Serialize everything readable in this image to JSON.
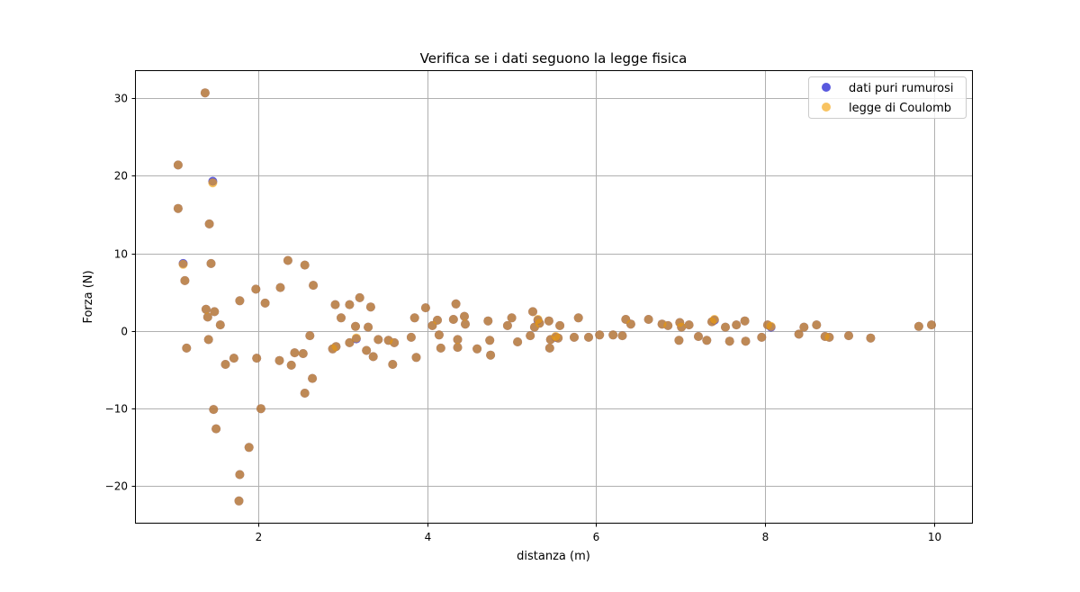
{
  "chart_data": {
    "type": "scatter",
    "title": "Verifica se i dati seguono la legge fisica",
    "xlabel": "distanza (m)",
    "ylabel": "Forza (N)",
    "xlim": [
      0.55,
      10.45
    ],
    "ylim": [
      -24.7,
      33.5
    ],
    "xticks": [
      2,
      4,
      6,
      8,
      10
    ],
    "xtick_labels": [
      "2",
      "4",
      "6",
      "8",
      "10"
    ],
    "yticks": [
      -20,
      -10,
      0,
      10,
      20,
      30
    ],
    "ytick_labels": [
      "−20",
      "−10",
      "0",
      "10",
      "20",
      "30"
    ],
    "grid": true,
    "legend_position": "top-right",
    "series": [
      {
        "name": "dati puri rumurosi",
        "color": "#0000cc",
        "alpha": 0.65,
        "points": [
          [
            1.05,
            21.4
          ],
          [
            1.05,
            15.8
          ],
          [
            1.11,
            8.7
          ],
          [
            1.13,
            6.5
          ],
          [
            1.15,
            -2.2
          ],
          [
            1.37,
            30.7
          ],
          [
            1.38,
            2.8
          ],
          [
            1.4,
            1.8
          ],
          [
            1.41,
            -1.1
          ],
          [
            1.42,
            13.8
          ],
          [
            1.44,
            8.7
          ],
          [
            1.46,
            19.3
          ],
          [
            1.47,
            -10.1
          ],
          [
            1.48,
            2.5
          ],
          [
            1.5,
            -12.6
          ],
          [
            1.55,
            0.8
          ],
          [
            1.61,
            -4.3
          ],
          [
            1.71,
            -3.5
          ],
          [
            1.77,
            -21.9
          ],
          [
            1.78,
            -18.5
          ],
          [
            1.78,
            3.9
          ],
          [
            1.89,
            -15.0
          ],
          [
            1.97,
            5.4
          ],
          [
            1.98,
            -3.5
          ],
          [
            2.03,
            -10.0
          ],
          [
            2.08,
            3.6
          ],
          [
            2.25,
            -3.8
          ],
          [
            2.26,
            5.6
          ],
          [
            2.35,
            9.1
          ],
          [
            2.39,
            -4.4
          ],
          [
            2.43,
            -2.8
          ],
          [
            2.53,
            -2.9
          ],
          [
            2.55,
            8.5
          ],
          [
            2.55,
            -8.0
          ],
          [
            2.61,
            -0.6
          ],
          [
            2.64,
            -6.1
          ],
          [
            2.65,
            5.9
          ],
          [
            2.88,
            -2.3
          ],
          [
            2.91,
            3.4
          ],
          [
            2.92,
            -2.0
          ],
          [
            2.98,
            1.7
          ],
          [
            3.08,
            3.4
          ],
          [
            3.08,
            -1.5
          ],
          [
            3.15,
            0.6
          ],
          [
            3.16,
            -1.0
          ],
          [
            3.2,
            4.3
          ],
          [
            3.28,
            -2.5
          ],
          [
            3.3,
            0.5
          ],
          [
            3.33,
            3.1
          ],
          [
            3.36,
            -3.3
          ],
          [
            3.42,
            -1.1
          ],
          [
            3.54,
            -1.2
          ],
          [
            3.59,
            -4.3
          ],
          [
            3.61,
            -1.5
          ],
          [
            3.81,
            -0.8
          ],
          [
            3.85,
            1.7
          ],
          [
            3.87,
            -3.4
          ],
          [
            3.98,
            3.0
          ],
          [
            4.06,
            0.7
          ],
          [
            4.12,
            1.4
          ],
          [
            4.14,
            -0.5
          ],
          [
            4.16,
            -2.2
          ],
          [
            4.31,
            1.5
          ],
          [
            4.34,
            3.5
          ],
          [
            4.36,
            -1.1
          ],
          [
            4.36,
            -2.1
          ],
          [
            4.44,
            1.9
          ],
          [
            4.45,
            0.9
          ],
          [
            4.59,
            -2.3
          ],
          [
            4.72,
            1.3
          ],
          [
            4.74,
            -1.2
          ],
          [
            4.75,
            -3.1
          ],
          [
            4.95,
            0.7
          ],
          [
            5.0,
            1.7
          ],
          [
            5.07,
            -1.4
          ],
          [
            5.22,
            -0.6
          ],
          [
            5.25,
            2.5
          ],
          [
            5.27,
            0.5
          ],
          [
            5.31,
            1.4
          ],
          [
            5.33,
            1.0
          ],
          [
            5.44,
            1.3
          ],
          [
            5.45,
            -2.2
          ],
          [
            5.46,
            -1.1
          ],
          [
            5.52,
            -0.8
          ],
          [
            5.55,
            -0.9
          ],
          [
            5.57,
            0.7
          ],
          [
            5.74,
            -0.8
          ],
          [
            5.79,
            1.7
          ],
          [
            5.91,
            -0.8
          ],
          [
            6.04,
            -0.5
          ],
          [
            6.2,
            -0.5
          ],
          [
            6.31,
            -0.6
          ],
          [
            6.35,
            1.5
          ],
          [
            6.41,
            0.9
          ],
          [
            6.62,
            1.5
          ],
          [
            6.78,
            0.9
          ],
          [
            6.85,
            0.7
          ],
          [
            6.98,
            -1.2
          ],
          [
            6.99,
            1.1
          ],
          [
            7.01,
            0.5
          ],
          [
            7.1,
            0.8
          ],
          [
            7.21,
            -0.7
          ],
          [
            7.31,
            -1.2
          ],
          [
            7.37,
            1.2
          ],
          [
            7.4,
            1.4
          ],
          [
            7.53,
            0.5
          ],
          [
            7.58,
            -1.3
          ],
          [
            7.66,
            0.8
          ],
          [
            7.76,
            1.3
          ],
          [
            7.77,
            -1.3
          ],
          [
            7.96,
            -0.8
          ],
          [
            8.03,
            0.8
          ],
          [
            8.07,
            0.5
          ],
          [
            8.4,
            -0.4
          ],
          [
            8.46,
            0.5
          ],
          [
            8.61,
            0.8
          ],
          [
            8.71,
            -0.7
          ],
          [
            8.76,
            -0.8
          ],
          [
            8.99,
            -0.6
          ],
          [
            9.25,
            -0.9
          ],
          [
            9.82,
            0.6
          ],
          [
            9.97,
            0.8
          ]
        ]
      },
      {
        "name": "legge di Coulomb",
        "color": "#f5a30c",
        "alpha": 0.65,
        "points": [
          [
            1.05,
            21.4
          ],
          [
            1.05,
            15.8
          ],
          [
            1.11,
            8.6
          ],
          [
            1.13,
            6.5
          ],
          [
            1.15,
            -2.2
          ],
          [
            1.37,
            30.7
          ],
          [
            1.38,
            2.8
          ],
          [
            1.4,
            1.8
          ],
          [
            1.41,
            -1.1
          ],
          [
            1.42,
            13.8
          ],
          [
            1.44,
            8.7
          ],
          [
            1.46,
            19.1
          ],
          [
            1.47,
            -10.1
          ],
          [
            1.48,
            2.5
          ],
          [
            1.5,
            -12.6
          ],
          [
            1.55,
            0.8
          ],
          [
            1.61,
            -4.3
          ],
          [
            1.71,
            -3.5
          ],
          [
            1.77,
            -21.9
          ],
          [
            1.78,
            -18.5
          ],
          [
            1.78,
            3.9
          ],
          [
            1.89,
            -15.0
          ],
          [
            1.97,
            5.4
          ],
          [
            1.98,
            -3.5
          ],
          [
            2.03,
            -10.0
          ],
          [
            2.08,
            3.6
          ],
          [
            2.25,
            -3.8
          ],
          [
            2.26,
            5.6
          ],
          [
            2.35,
            9.1
          ],
          [
            2.39,
            -4.4
          ],
          [
            2.43,
            -2.8
          ],
          [
            2.53,
            -2.9
          ],
          [
            2.55,
            8.5
          ],
          [
            2.55,
            -8.0
          ],
          [
            2.61,
            -0.6
          ],
          [
            2.64,
            -6.1
          ],
          [
            2.65,
            5.9
          ],
          [
            2.88,
            -2.3
          ],
          [
            2.91,
            3.4
          ],
          [
            2.92,
            -2.0
          ],
          [
            2.98,
            1.7
          ],
          [
            3.08,
            3.4
          ],
          [
            3.08,
            -1.5
          ],
          [
            3.15,
            0.6
          ],
          [
            3.16,
            -0.9
          ],
          [
            3.2,
            4.3
          ],
          [
            3.28,
            -2.5
          ],
          [
            3.3,
            0.5
          ],
          [
            3.33,
            3.1
          ],
          [
            3.36,
            -3.3
          ],
          [
            3.42,
            -1.1
          ],
          [
            3.54,
            -1.2
          ],
          [
            3.59,
            -4.3
          ],
          [
            3.61,
            -1.5
          ],
          [
            3.81,
            -0.8
          ],
          [
            3.85,
            1.7
          ],
          [
            3.87,
            -3.4
          ],
          [
            3.98,
            3.0
          ],
          [
            4.06,
            0.7
          ],
          [
            4.12,
            1.4
          ],
          [
            4.14,
            -0.5
          ],
          [
            4.16,
            -2.2
          ],
          [
            4.31,
            1.5
          ],
          [
            4.34,
            3.5
          ],
          [
            4.36,
            -1.1
          ],
          [
            4.36,
            -2.1
          ],
          [
            4.44,
            1.9
          ],
          [
            4.45,
            0.9
          ],
          [
            4.59,
            -2.3
          ],
          [
            4.72,
            1.3
          ],
          [
            4.74,
            -1.2
          ],
          [
            4.75,
            -3.1
          ],
          [
            4.95,
            0.7
          ],
          [
            5.0,
            1.7
          ],
          [
            5.07,
            -1.4
          ],
          [
            5.22,
            -0.6
          ],
          [
            5.25,
            2.5
          ],
          [
            5.27,
            0.5
          ],
          [
            5.31,
            1.5
          ],
          [
            5.33,
            1.0
          ],
          [
            5.44,
            1.3
          ],
          [
            5.45,
            -2.2
          ],
          [
            5.46,
            -1.1
          ],
          [
            5.52,
            -0.7
          ],
          [
            5.55,
            -0.9
          ],
          [
            5.57,
            0.7
          ],
          [
            5.74,
            -0.8
          ],
          [
            5.79,
            1.7
          ],
          [
            5.91,
            -0.8
          ],
          [
            6.04,
            -0.5
          ],
          [
            6.2,
            -0.5
          ],
          [
            6.31,
            -0.6
          ],
          [
            6.35,
            1.5
          ],
          [
            6.41,
            0.9
          ],
          [
            6.62,
            1.5
          ],
          [
            6.78,
            0.9
          ],
          [
            6.85,
            0.7
          ],
          [
            6.98,
            -1.2
          ],
          [
            6.99,
            1.1
          ],
          [
            7.01,
            0.5
          ],
          [
            7.1,
            0.8
          ],
          [
            7.21,
            -0.7
          ],
          [
            7.31,
            -1.2
          ],
          [
            7.37,
            1.2
          ],
          [
            7.4,
            1.5
          ],
          [
            7.53,
            0.5
          ],
          [
            7.58,
            -1.3
          ],
          [
            7.66,
            0.8
          ],
          [
            7.76,
            1.3
          ],
          [
            7.77,
            -1.3
          ],
          [
            7.96,
            -0.8
          ],
          [
            8.03,
            0.8
          ],
          [
            8.07,
            0.6
          ],
          [
            8.4,
            -0.4
          ],
          [
            8.46,
            0.5
          ],
          [
            8.61,
            0.8
          ],
          [
            8.71,
            -0.7
          ],
          [
            8.76,
            -0.8
          ],
          [
            8.99,
            -0.6
          ],
          [
            9.25,
            -0.9
          ],
          [
            9.82,
            0.6
          ],
          [
            9.97,
            0.8
          ]
        ]
      }
    ]
  }
}
